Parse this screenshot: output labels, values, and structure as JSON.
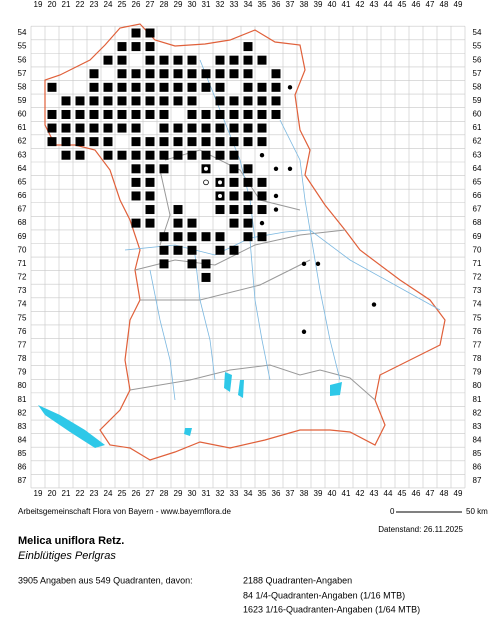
{
  "map": {
    "x_labels": [
      19,
      20,
      21,
      22,
      23,
      24,
      25,
      26,
      27,
      28,
      29,
      30,
      31,
      32,
      33,
      34,
      35,
      36,
      37,
      38,
      39,
      40,
      41,
      42,
      43,
      44,
      45,
      46,
      47,
      48,
      49
    ],
    "y_labels": [
      54,
      55,
      56,
      57,
      58,
      59,
      60,
      61,
      62,
      63,
      64,
      65,
      66,
      67,
      68,
      69,
      70,
      71,
      72,
      73,
      74,
      75,
      76,
      77,
      78,
      79,
      80,
      81,
      82,
      83,
      84,
      85,
      86,
      87
    ]
  },
  "footer": {
    "credit": "Arbeitsgemeinschaft Flora von Bayern - www.bayernflora.de",
    "scale_start": "0",
    "scale_end": "50 km",
    "date": "Datenstand: 26.11.2025",
    "species": "Melica uniflora Retz.",
    "common_name": "Einblütiges Perlgras",
    "summary": "3905 Angaben aus 549 Quadranten, davon:",
    "counts": [
      "2188 Quadranten-Angaben",
      "84 1/4-Quadranten-Angaben (1/16 MTB)",
      "1623 1/16-Quadranten-Angaben (1/64 MTB)"
    ]
  }
}
